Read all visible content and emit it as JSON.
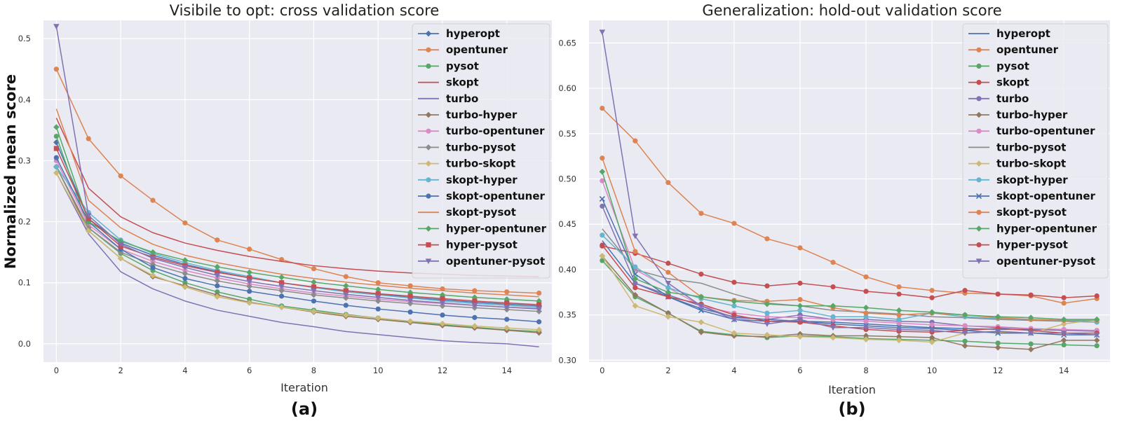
{
  "colors": {
    "hyperopt": "#4c72b0",
    "opentuner": "#dd8452",
    "pysot": "#55a868",
    "skopt": "#c44e52",
    "turbo": "#8172b3",
    "turbo-hyper": "#937860",
    "turbo-opentuner": "#da8bc3",
    "turbo-pysot": "#8c8c8c",
    "turbo-skopt": "#ccb974",
    "skopt-hyper": "#64b5cd",
    "skopt-opentuner": "#4c72b0",
    "skopt-pysot": "#dd8452",
    "hyper-opentuner": "#55a868",
    "hyper-pysot": "#c44e52",
    "opentuner-pysot": "#8172b3"
  },
  "chart_data": [
    {
      "type": "line",
      "title": "Visibile to opt: cross validation score",
      "xlabel": "Iteration",
      "ylabel": "Normalized mean score",
      "panel_label": "(a)",
      "xlim": [
        -0.4,
        15.4
      ],
      "ylim": [
        -0.03,
        0.53
      ],
      "xticks": [
        0,
        2,
        4,
        6,
        8,
        10,
        12,
        14
      ],
      "xtick_labels": [
        "0",
        "2",
        "4",
        "6",
        "8",
        "10",
        "12",
        "14"
      ],
      "yticks": [
        0.0,
        0.1,
        0.2,
        0.3,
        0.4,
        0.5
      ],
      "ytick_labels": [
        "0.0",
        "0.1",
        "0.2",
        "0.3",
        "0.4",
        "0.5"
      ],
      "grid": true,
      "legend": "top-right",
      "x": [
        0,
        1,
        2,
        3,
        4,
        5,
        6,
        7,
        8,
        9,
        10,
        11,
        12,
        13,
        14,
        15
      ],
      "series": [
        {
          "name": "hyperopt",
          "marker": "D",
          "values": [
            0.33,
            0.205,
            0.165,
            0.145,
            0.13,
            0.118,
            0.108,
            0.1,
            0.093,
            0.087,
            0.081,
            0.076,
            0.072,
            0.068,
            0.065,
            0.062
          ]
        },
        {
          "name": "opentuner",
          "marker": "o",
          "values": [
            0.45,
            0.336,
            0.275,
            0.235,
            0.198,
            0.17,
            0.155,
            0.138,
            0.123,
            0.11,
            0.1,
            0.095,
            0.09,
            0.087,
            0.085,
            0.083
          ]
        },
        {
          "name": "pysot",
          "marker": "o",
          "values": [
            0.34,
            0.19,
            0.148,
            0.12,
            0.1,
            0.085,
            0.073,
            0.062,
            0.055,
            0.048,
            0.042,
            0.036,
            0.031,
            0.027,
            0.023,
            0.02
          ]
        },
        {
          "name": "skopt",
          "marker": "none",
          "values": [
            0.37,
            0.255,
            0.208,
            0.182,
            0.165,
            0.153,
            0.143,
            0.135,
            0.128,
            0.123,
            0.119,
            0.116,
            0.114,
            0.112,
            0.111,
            0.11
          ]
        },
        {
          "name": "turbo",
          "marker": "none",
          "values": [
            0.28,
            0.18,
            0.118,
            0.09,
            0.07,
            0.055,
            0.045,
            0.035,
            0.028,
            0.02,
            0.015,
            0.01,
            0.005,
            0.002,
            0.0,
            -0.005
          ]
        },
        {
          "name": "turbo-hyper",
          "marker": "D",
          "values": [
            0.29,
            0.185,
            0.14,
            0.11,
            0.095,
            0.08,
            0.068,
            0.06,
            0.052,
            0.045,
            0.04,
            0.035,
            0.03,
            0.026,
            0.022,
            0.018
          ]
        },
        {
          "name": "turbo-opentuner",
          "marker": "o",
          "values": [
            0.3,
            0.195,
            0.155,
            0.135,
            0.12,
            0.108,
            0.098,
            0.09,
            0.083,
            0.078,
            0.073,
            0.069,
            0.066,
            0.063,
            0.06,
            0.058
          ]
        },
        {
          "name": "turbo-pysot",
          "marker": "D",
          "values": [
            0.29,
            0.19,
            0.15,
            0.13,
            0.115,
            0.103,
            0.094,
            0.087,
            0.08,
            0.075,
            0.07,
            0.066,
            0.062,
            0.059,
            0.056,
            0.053
          ]
        },
        {
          "name": "turbo-skopt",
          "marker": "D",
          "values": [
            0.28,
            0.185,
            0.14,
            0.112,
            0.093,
            0.077,
            0.067,
            0.06,
            0.053,
            0.047,
            0.042,
            0.037,
            0.033,
            0.029,
            0.026,
            0.023
          ]
        },
        {
          "name": "skopt-hyper",
          "marker": "o",
          "values": [
            0.29,
            0.215,
            0.17,
            0.148,
            0.133,
            0.12,
            0.11,
            0.1,
            0.092,
            0.085,
            0.08,
            0.075,
            0.07,
            0.066,
            0.063,
            0.06
          ]
        },
        {
          "name": "skopt-opentuner",
          "marker": "o",
          "values": [
            0.305,
            0.2,
            0.155,
            0.125,
            0.107,
            0.095,
            0.086,
            0.078,
            0.07,
            0.063,
            0.057,
            0.052,
            0.047,
            0.043,
            0.04,
            0.036
          ]
        },
        {
          "name": "skopt-pysot",
          "marker": "none",
          "values": [
            0.385,
            0.235,
            0.19,
            0.163,
            0.145,
            0.133,
            0.123,
            0.114,
            0.107,
            0.101,
            0.096,
            0.091,
            0.087,
            0.083,
            0.08,
            0.077
          ]
        },
        {
          "name": "hyper-opentuner",
          "marker": "D",
          "values": [
            0.355,
            0.2,
            0.168,
            0.15,
            0.137,
            0.126,
            0.117,
            0.109,
            0.101,
            0.095,
            0.089,
            0.084,
            0.08,
            0.076,
            0.073,
            0.07
          ]
        },
        {
          "name": "hyper-pysot",
          "marker": "s",
          "values": [
            0.32,
            0.205,
            0.16,
            0.142,
            0.128,
            0.117,
            0.108,
            0.1,
            0.093,
            0.087,
            0.082,
            0.078,
            0.074,
            0.07,
            0.067,
            0.064
          ]
        },
        {
          "name": "opentuner-pysot",
          "marker": "v",
          "values": [
            0.52,
            0.21,
            0.163,
            0.14,
            0.125,
            0.112,
            0.102,
            0.094,
            0.087,
            0.081,
            0.076,
            0.071,
            0.067,
            0.063,
            0.06,
            0.057
          ]
        }
      ]
    },
    {
      "type": "line",
      "title": "Generalization: hold-out validation score",
      "xlabel": "Iteration",
      "ylabel": "",
      "panel_label": "(b)",
      "xlim": [
        -0.4,
        15.4
      ],
      "ylim": [
        0.298,
        0.675
      ],
      "xticks": [
        0,
        2,
        4,
        6,
        8,
        10,
        12,
        14
      ],
      "xtick_labels": [
        "0",
        "2",
        "4",
        "6",
        "8",
        "10",
        "12",
        "14"
      ],
      "yticks": [
        0.3,
        0.35,
        0.4,
        0.45,
        0.5,
        0.55,
        0.6,
        0.65
      ],
      "ytick_labels": [
        "0.30",
        "0.35",
        "0.40",
        "0.45",
        "0.50",
        "0.55",
        "0.60",
        "0.65"
      ],
      "grid": true,
      "legend": "top-right",
      "x": [
        0,
        1,
        2,
        3,
        4,
        5,
        6,
        7,
        8,
        9,
        10,
        11,
        12,
        13,
        14,
        15
      ],
      "series": [
        {
          "name": "hyperopt",
          "marker": "none",
          "values": [
            0.432,
            0.385,
            0.37,
            0.357,
            0.348,
            0.345,
            0.343,
            0.342,
            0.34,
            0.338,
            0.336,
            0.335,
            0.334,
            0.334,
            0.333,
            0.333
          ]
        },
        {
          "name": "opentuner",
          "marker": "o",
          "values": [
            0.578,
            0.542,
            0.496,
            0.462,
            0.451,
            0.434,
            0.424,
            0.408,
            0.392,
            0.381,
            0.377,
            0.374,
            0.373,
            0.371,
            0.363,
            0.368
          ]
        },
        {
          "name": "pysot",
          "marker": "o",
          "values": [
            0.41,
            0.37,
            0.352,
            0.332,
            0.328,
            0.325,
            0.327,
            0.326,
            0.324,
            0.323,
            0.322,
            0.321,
            0.319,
            0.318,
            0.317,
            0.316
          ]
        },
        {
          "name": "skopt",
          "marker": "o",
          "values": [
            0.426,
            0.418,
            0.407,
            0.395,
            0.386,
            0.382,
            0.385,
            0.381,
            0.376,
            0.373,
            0.369,
            0.377,
            0.373,
            0.372,
            0.369,
            0.371
          ]
        },
        {
          "name": "turbo",
          "marker": "o",
          "values": [
            0.47,
            0.385,
            0.372,
            0.36,
            0.347,
            0.345,
            0.35,
            0.345,
            0.345,
            0.343,
            0.342,
            0.338,
            0.336,
            0.335,
            0.333,
            0.332
          ]
        },
        {
          "name": "turbo-hyper",
          "marker": "D",
          "values": [
            0.415,
            0.372,
            0.352,
            0.331,
            0.327,
            0.326,
            0.329,
            0.327,
            0.327,
            0.326,
            0.325,
            0.316,
            0.314,
            0.312,
            0.322,
            0.322
          ]
        },
        {
          "name": "turbo-opentuner",
          "marker": "o",
          "values": [
            0.498,
            0.4,
            0.38,
            0.36,
            0.352,
            0.348,
            0.347,
            0.345,
            0.343,
            0.341,
            0.339,
            0.338,
            0.337,
            0.335,
            0.334,
            0.333
          ]
        },
        {
          "name": "turbo-pysot",
          "marker": "none",
          "values": [
            0.445,
            0.4,
            0.39,
            0.385,
            0.373,
            0.363,
            0.36,
            0.355,
            0.353,
            0.351,
            0.348,
            0.347,
            0.345,
            0.344,
            0.343,
            0.342
          ]
        },
        {
          "name": "turbo-skopt",
          "marker": "D",
          "values": [
            0.415,
            0.36,
            0.348,
            0.342,
            0.33,
            0.328,
            0.326,
            0.325,
            0.323,
            0.322,
            0.32,
            0.33,
            0.331,
            0.33,
            0.34,
            0.345
          ]
        },
        {
          "name": "skopt-hyper",
          "marker": "o",
          "values": [
            0.438,
            0.403,
            0.38,
            0.368,
            0.36,
            0.352,
            0.355,
            0.348,
            0.348,
            0.345,
            0.352,
            0.348,
            0.346,
            0.345,
            0.344,
            0.342
          ]
        },
        {
          "name": "skopt-opentuner",
          "marker": "x",
          "values": [
            0.478,
            0.395,
            0.37,
            0.355,
            0.345,
            0.343,
            0.343,
            0.34,
            0.338,
            0.336,
            0.335,
            0.333,
            0.33,
            0.33,
            0.328,
            0.328
          ]
        },
        {
          "name": "skopt-pysot",
          "marker": "o",
          "values": [
            0.523,
            0.42,
            0.397,
            0.37,
            0.366,
            0.365,
            0.367,
            0.358,
            0.352,
            0.35,
            0.352,
            0.35,
            0.347,
            0.345,
            0.344,
            0.344
          ]
        },
        {
          "name": "hyper-opentuner",
          "marker": "D",
          "values": [
            0.508,
            0.39,
            0.375,
            0.37,
            0.365,
            0.362,
            0.36,
            0.36,
            0.358,
            0.355,
            0.353,
            0.35,
            0.348,
            0.347,
            0.345,
            0.345
          ]
        },
        {
          "name": "hyper-pysot",
          "marker": "o",
          "values": [
            0.427,
            0.38,
            0.37,
            0.362,
            0.35,
            0.343,
            0.342,
            0.338,
            0.334,
            0.332,
            0.331,
            0.333,
            0.335,
            0.333,
            0.33,
            0.33
          ]
        },
        {
          "name": "opentuner-pysot",
          "marker": "v",
          "values": [
            0.662,
            0.437,
            0.385,
            0.36,
            0.345,
            0.34,
            0.345,
            0.336,
            0.336,
            0.334,
            0.333,
            0.33,
            0.332,
            0.33,
            0.33,
            0.328
          ]
        }
      ]
    }
  ]
}
